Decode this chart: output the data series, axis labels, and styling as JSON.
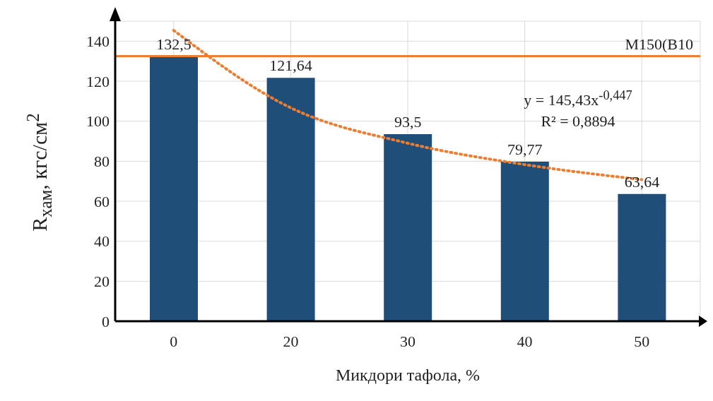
{
  "chart_data": {
    "type": "bar",
    "xlabel": "Микдори тафола, %",
    "ylabel": "R$_{хам}$, кгс/см$^{2}$",
    "categories": [
      "0",
      "20",
      "30",
      "40",
      "50"
    ],
    "series": [
      {
        "color": "#1f4e79",
        "values": [
          132.5,
          121.64,
          93.5,
          79.77,
          63.64
        ],
        "value_labels": [
          "132,5",
          "121,64",
          "93,5",
          "79,77",
          "63,64"
        ]
      },
      {
        "type": "line",
        "color": "#ed7d31",
        "values": [
          145.4,
          106.7,
          89.0,
          78.3,
          70.8
        ],
        "line_style": "dotted",
        "marker": "none"
      }
    ],
    "ylim": [
      0,
      150
    ],
    "yticks": [
      0,
      20,
      40,
      60,
      80,
      100,
      120,
      140
    ],
    "grid": true,
    "ref_lines": [
      {
        "axis": "y",
        "value": 132.5,
        "label": "M150(B10",
        "color": "#ed7d31",
        "line_style": "solid"
      }
    ],
    "annotations": [
      "y = 145,43x$^{-0,447}$",
      "R² = 0,8894"
    ]
  }
}
